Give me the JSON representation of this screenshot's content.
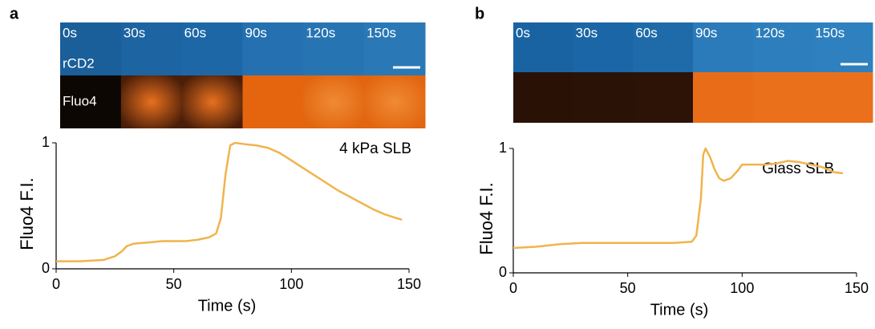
{
  "chart_data": [
    {
      "type": "line",
      "panel_label": "a",
      "title": "4 kPa SLB",
      "image_time_labels": [
        "0s",
        "30s",
        "60s",
        "90s",
        "120s",
        "150s"
      ],
      "image_channel_labels": [
        "rCD2",
        "Fluo4"
      ],
      "x_label": "Time (s)",
      "y_label": "Fluo4 F.I.",
      "x": [
        0,
        10,
        20,
        25,
        28,
        30,
        33,
        40,
        45,
        50,
        55,
        60,
        65,
        68,
        70,
        72,
        74,
        76,
        80,
        85,
        90,
        95,
        100,
        105,
        110,
        115,
        120,
        125,
        130,
        135,
        140,
        145,
        147
      ],
      "series": [
        {
          "color": "#f0b44c",
          "values": [
            0.06,
            0.06,
            0.07,
            0.1,
            0.14,
            0.18,
            0.2,
            0.21,
            0.22,
            0.22,
            0.22,
            0.23,
            0.25,
            0.28,
            0.4,
            0.75,
            0.98,
            1.0,
            0.99,
            0.98,
            0.96,
            0.92,
            0.86,
            0.8,
            0.74,
            0.68,
            0.62,
            0.57,
            0.52,
            0.47,
            0.43,
            0.4,
            0.39
          ]
        }
      ],
      "xlim": [
        0,
        150
      ],
      "ylim": [
        0,
        1
      ],
      "xticks": [
        0,
        50,
        100,
        150
      ],
      "yticks": [
        0,
        1
      ]
    },
    {
      "type": "line",
      "panel_label": "b",
      "title": "Glass SLB",
      "image_time_labels": [
        "0s",
        "30s",
        "60s",
        "90s",
        "120s",
        "150s"
      ],
      "x_label": "Time (s)",
      "y_label": "Fluo4 F.I.",
      "x": [
        0,
        10,
        20,
        30,
        40,
        50,
        60,
        70,
        78,
        80,
        82,
        83,
        84,
        86,
        88,
        90,
        92,
        95,
        98,
        100,
        105,
        110,
        115,
        120,
        125,
        130,
        135,
        140,
        144
      ],
      "series": [
        {
          "color": "#f0b44c",
          "values": [
            0.2,
            0.21,
            0.23,
            0.24,
            0.24,
            0.24,
            0.24,
            0.24,
            0.25,
            0.3,
            0.6,
            0.95,
            1.0,
            0.93,
            0.83,
            0.76,
            0.74,
            0.76,
            0.82,
            0.87,
            0.87,
            0.87,
            0.88,
            0.9,
            0.89,
            0.87,
            0.85,
            0.81,
            0.8
          ]
        }
      ],
      "xlim": [
        0,
        150
      ],
      "ylim": [
        0,
        1
      ],
      "xticks": [
        0,
        50,
        100,
        150
      ],
      "yticks": [
        0,
        1
      ]
    }
  ]
}
